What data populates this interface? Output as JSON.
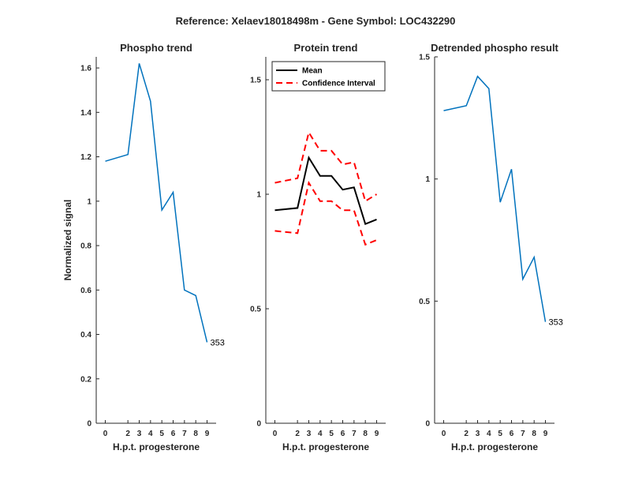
{
  "suptitle": "Reference:  Xelaev18018498m - Gene Symbol:  LOC432290",
  "chart_data": [
    {
      "type": "line",
      "title": "Phospho trend",
      "xlabel": "H.p.t. progesterone",
      "ylabel": "Normalized signal",
      "x": [
        0,
        2,
        3,
        4,
        5,
        6,
        7,
        8,
        9
      ],
      "xlim": [
        -0.8,
        9.8
      ],
      "ylim": [
        0,
        1.65
      ],
      "yticks": [
        0,
        0.2,
        0.4,
        0.6,
        0.8,
        1,
        1.2,
        1.4,
        1.6
      ],
      "ytick_labels": [
        "0",
        "0.2",
        "0.4",
        "0.6",
        "0.8",
        "1",
        "1.2",
        "1.4",
        "1.6"
      ],
      "series": [
        {
          "values": [
            1.18,
            1.21,
            1.62,
            1.45,
            0.96,
            1.04,
            0.6,
            0.575,
            0.365
          ],
          "color": "#0072BD",
          "style": "solid"
        }
      ],
      "annotation": {
        "text": "353",
        "x": 9,
        "y": 0.365
      }
    },
    {
      "type": "line",
      "title": "Protein trend",
      "xlabel": "H.p.t. progesterone",
      "ylabel": "",
      "x": [
        0,
        2,
        3,
        4,
        5,
        6,
        7,
        8,
        9
      ],
      "xlim": [
        -0.8,
        9.8
      ],
      "ylim": [
        0,
        1.6
      ],
      "yticks": [
        0,
        0.5,
        1,
        1.5
      ],
      "ytick_labels": [
        "0",
        "0.5",
        "1",
        "1.5"
      ],
      "series": [
        {
          "name": "Mean",
          "values": [
            0.93,
            0.94,
            1.16,
            1.08,
            1.08,
            1.02,
            1.03,
            0.87,
            0.89
          ],
          "color": "#000000",
          "style": "solid"
        },
        {
          "name": "Confidence Interval",
          "values": [
            1.05,
            1.07,
            1.27,
            1.19,
            1.19,
            1.13,
            1.14,
            0.97,
            1.0
          ],
          "color": "#FF0000",
          "style": "dashed"
        },
        {
          "name": "",
          "values": [
            0.84,
            0.83,
            1.05,
            0.97,
            0.97,
            0.93,
            0.93,
            0.78,
            0.8
          ],
          "color": "#FF0000",
          "style": "dashed"
        }
      ],
      "legend": {
        "position": "top-left",
        "entries": [
          {
            "label": "Mean",
            "color": "#000000",
            "style": "solid"
          },
          {
            "label": "Confidence Interval",
            "color": "#FF0000",
            "style": "dashed"
          }
        ]
      }
    },
    {
      "type": "line",
      "title": "Detrended phospho result",
      "xlabel": "H.p.t. progesterone",
      "ylabel": "",
      "x": [
        0,
        2,
        3,
        4,
        5,
        6,
        7,
        8,
        9
      ],
      "xlim": [
        -0.8,
        9.8
      ],
      "ylim": [
        0,
        1.5
      ],
      "yticks": [
        0,
        0.5,
        1,
        1.5
      ],
      "ytick_labels": [
        "0",
        "0.5",
        "1",
        "1.5"
      ],
      "series": [
        {
          "values": [
            1.28,
            1.3,
            1.42,
            1.37,
            0.905,
            1.04,
            0.59,
            0.68,
            0.415
          ],
          "color": "#0072BD",
          "style": "solid"
        }
      ],
      "annotation": {
        "text": "353",
        "x": 9,
        "y": 0.415
      }
    }
  ]
}
